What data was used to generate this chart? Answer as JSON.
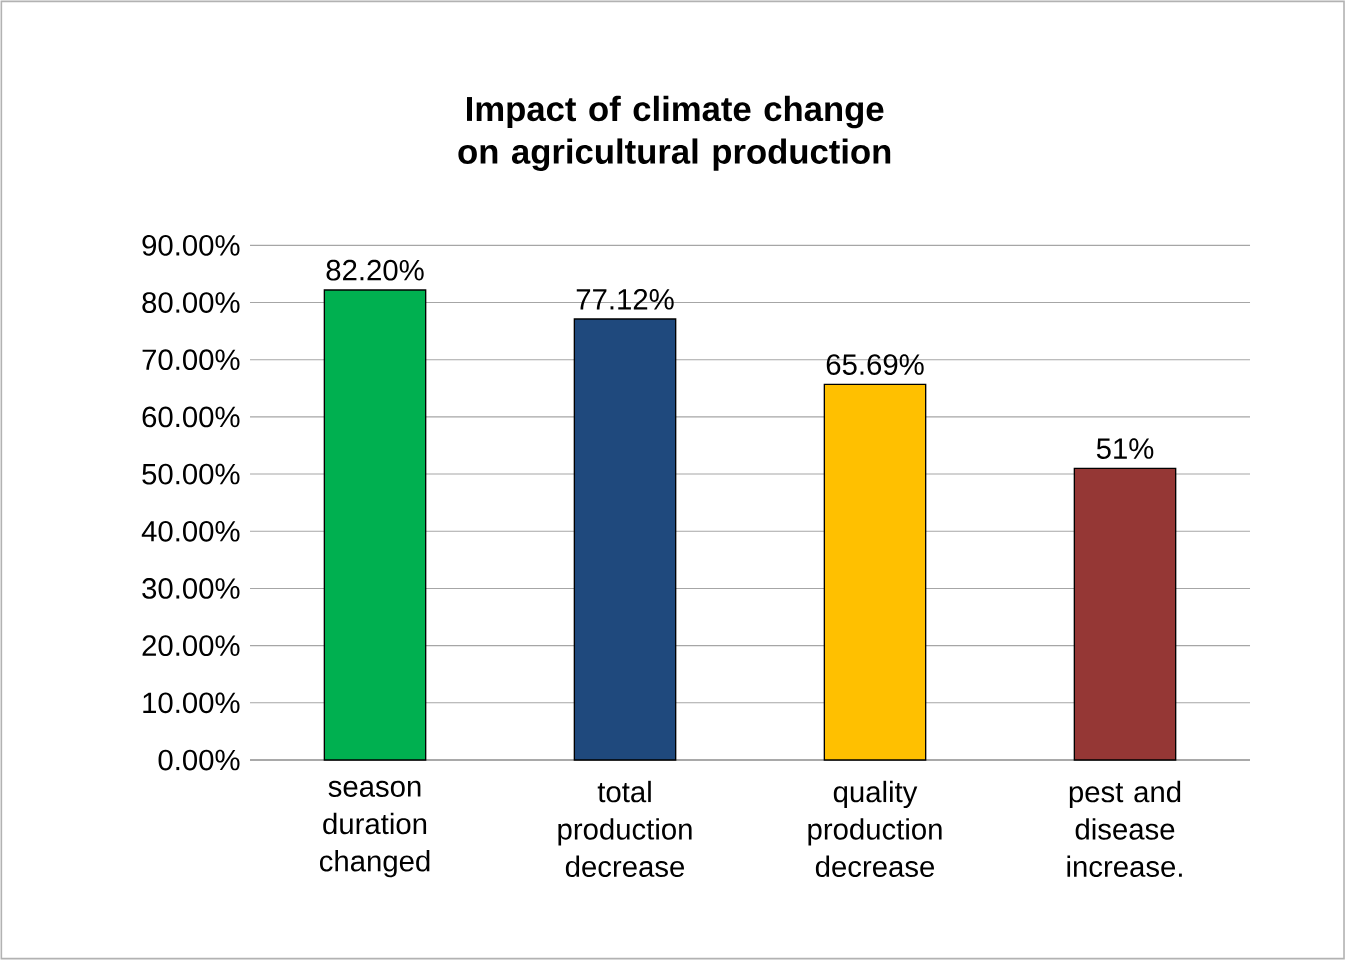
{
  "chart_data": {
    "type": "bar",
    "title": "Impact of climate change on agricultural production",
    "categories": [
      "season duration changed",
      "total production decrease",
      "quality production decrease",
      "pest and disease increase."
    ],
    "values": [
      82.2,
      77.12,
      65.69,
      51
    ],
    "colors": [
      "#00b050",
      "#1f497d",
      "#ffc000",
      "#953735"
    ],
    "value_labels": [
      "82.20%",
      "77.12%",
      "65.69%",
      "51%"
    ],
    "ylim": [
      0,
      90
    ],
    "yticks": [
      {
        "value": 0,
        "label": "0.00%"
      },
      {
        "value": 10,
        "label": "10.00%"
      },
      {
        "value": 20,
        "label": "20.00%"
      },
      {
        "value": 30,
        "label": "30.00%"
      },
      {
        "value": 40,
        "label": "40.00%"
      },
      {
        "value": 50,
        "label": "50.00%"
      },
      {
        "value": 60,
        "label": "60.00%"
      },
      {
        "value": 70,
        "label": "70.00%"
      },
      {
        "value": 80,
        "label": "80.00%"
      },
      {
        "value": 90,
        "label": "90.00%"
      }
    ],
    "grid": "y"
  }
}
